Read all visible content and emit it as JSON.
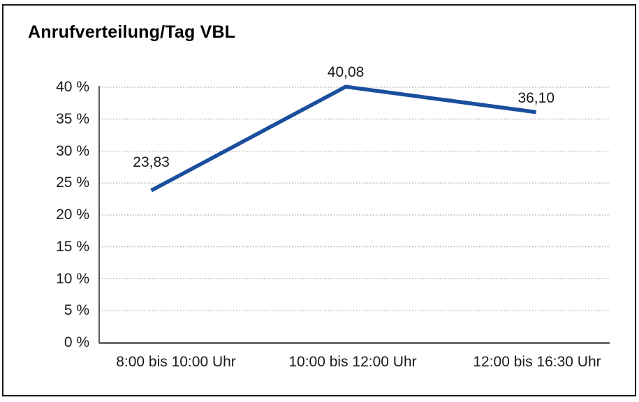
{
  "chart_data": {
    "type": "line",
    "title": "Anrufverteilung/Tag VBL",
    "categories": [
      "8:00 bis 10:00 Uhr",
      "10:00 bis 12:00 Uhr",
      "12:00 bis 16:30 Uhr"
    ],
    "values": [
      23.83,
      40.08,
      36.1
    ],
    "point_labels": [
      "23,83",
      "40,08",
      "36,10"
    ],
    "series_name": "Anrufverteilung/Tag VBL",
    "xlabel": "",
    "ylabel": "",
    "ylim": [
      0,
      40
    ],
    "ytick_step": 5,
    "yticks": [
      {
        "value": 0,
        "label": "0 %"
      },
      {
        "value": 5,
        "label": "5 %"
      },
      {
        "value": 10,
        "label": "10 %"
      },
      {
        "value": 15,
        "label": "15 %"
      },
      {
        "value": 20,
        "label": "20 %"
      },
      {
        "value": 25,
        "label": "25 %"
      },
      {
        "value": 30,
        "label": "30 %"
      },
      {
        "value": 35,
        "label": "35 %"
      },
      {
        "value": 40,
        "label": "40 %"
      }
    ],
    "grid": "horizontal-dotted",
    "legend": "none",
    "colors": {
      "line": "#1B4F9E",
      "gridline": "#8c8c8c",
      "y_axis": "#333333",
      "x_axis": "#4d4d4d",
      "text": "#1a1a1a",
      "frame_border": "#1a1a1a",
      "background": "#ffffff"
    }
  }
}
